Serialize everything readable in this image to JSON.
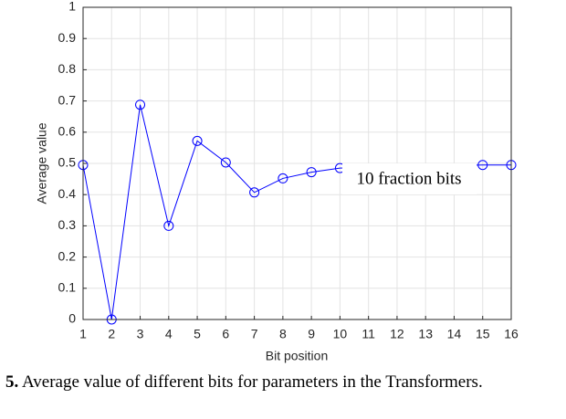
{
  "chart_data": {
    "type": "line",
    "x": [
      1,
      2,
      3,
      4,
      5,
      6,
      7,
      8,
      9,
      10,
      15,
      16
    ],
    "series": [
      {
        "name": "Average value",
        "color": "#0000ff",
        "values": [
          0.495,
          0,
          0.688,
          0.3,
          0.572,
          0.503,
          0.407,
          0.452,
          0.472,
          0.485,
          0.495,
          0.495
        ]
      }
    ],
    "xlim": [
      1,
      16
    ],
    "xticks": [
      1,
      2,
      3,
      4,
      5,
      6,
      7,
      8,
      9,
      10,
      11,
      12,
      13,
      14,
      15,
      16
    ],
    "ylim": [
      0,
      1
    ],
    "yticks": [
      0,
      0.1,
      0.2,
      0.3,
      0.4,
      0.5,
      0.6,
      0.7,
      0.8,
      0.9,
      1
    ],
    "xlabel": "Bit position",
    "ylabel": "Average value",
    "grid": true,
    "annotation": "10 fraction bits",
    "caption_label": "5.",
    "caption": "Average value of different bits for parameters in the Transformers."
  }
}
